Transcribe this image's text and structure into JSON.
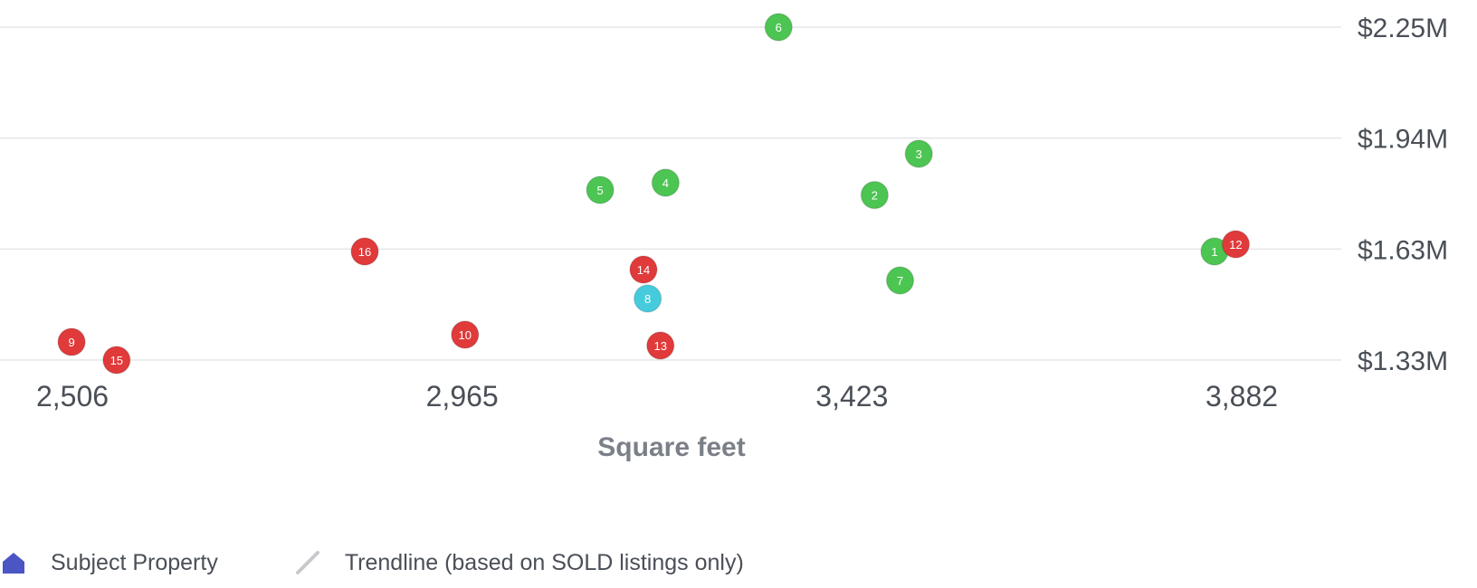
{
  "chart_data": {
    "type": "scatter",
    "xlabel": "Square feet",
    "x_ticks": [
      "2,506",
      "2,965",
      "3,423",
      "3,882"
    ],
    "y_ticks": [
      "$1.33M",
      "$1.63M",
      "$1.94M",
      "$2.25M"
    ],
    "xlim": [
      2506,
      3882
    ],
    "ylim": [
      1330000,
      2250000
    ],
    "grid": true,
    "colors": {
      "active": "#4cc552",
      "sold": "#e03a3a",
      "subject": "#45cbdc"
    },
    "points": [
      {
        "label": "1",
        "x": 3850,
        "y": 1630000,
        "status": "active"
      },
      {
        "label": "2",
        "x": 3450,
        "y": 1786000,
        "status": "active"
      },
      {
        "label": "3",
        "x": 3502,
        "y": 1900000,
        "status": "active"
      },
      {
        "label": "4",
        "x": 3204,
        "y": 1820000,
        "status": "active"
      },
      {
        "label": "5",
        "x": 3127,
        "y": 1800000,
        "status": "active"
      },
      {
        "label": "6",
        "x": 3337,
        "y": 2250000,
        "status": "active"
      },
      {
        "label": "7",
        "x": 3480,
        "y": 1550000,
        "status": "active"
      },
      {
        "label": "8",
        "x": 3183,
        "y": 1500000,
        "status": "subject"
      },
      {
        "label": "9",
        "x": 2505,
        "y": 1380000,
        "status": "sold"
      },
      {
        "label": "10",
        "x": 2968,
        "y": 1400000,
        "status": "sold"
      },
      {
        "label": "12",
        "x": 3875,
        "y": 1650000,
        "status": "sold"
      },
      {
        "label": "13",
        "x": 3198,
        "y": 1370000,
        "status": "sold"
      },
      {
        "label": "14",
        "x": 3178,
        "y": 1580000,
        "status": "sold"
      },
      {
        "label": "15",
        "x": 2558,
        "y": 1330000,
        "status": "sold"
      },
      {
        "label": "16",
        "x": 2850,
        "y": 1630000,
        "status": "sold"
      }
    ]
  },
  "legend": {
    "subject_label": "Subject Property",
    "trendline_label": "Trendline (based on SOLD listings only)"
  }
}
